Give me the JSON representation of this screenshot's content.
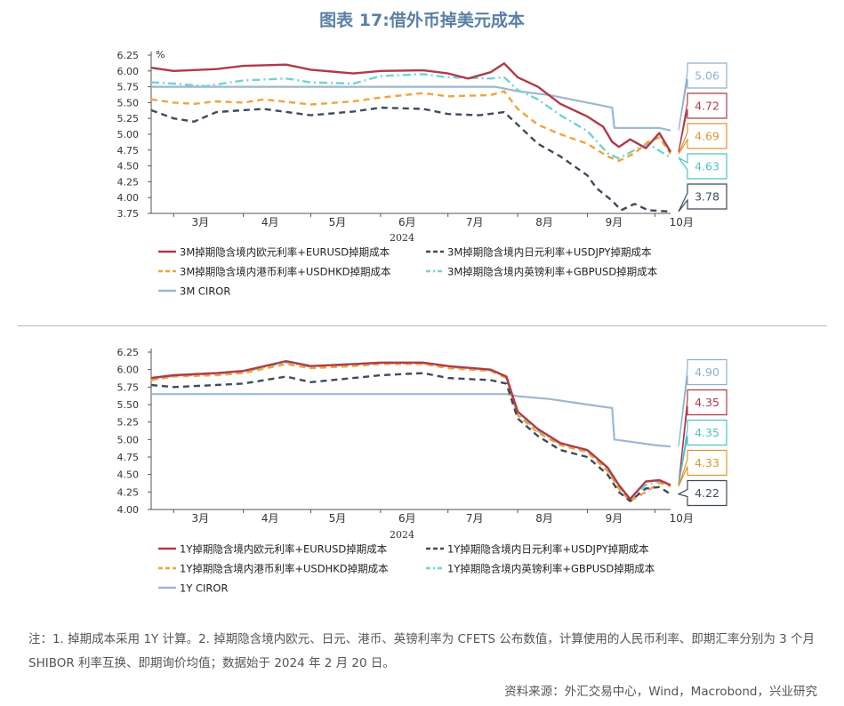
{
  "figure_title": "图表 17:借外币掉美元成本",
  "colors": {
    "eur": "#b03a48",
    "jpy": "#3e4a5c",
    "hkd": "#f0a43a",
    "gbp": "#6fd3d6",
    "ciror": "#9bb8d5"
  },
  "chart_data": [
    {
      "type": "line",
      "ylabel": "%",
      "ylim": [
        3.75,
        6.25
      ],
      "yticks": [
        "6.25",
        "6.00",
        "5.75",
        "5.50",
        "5.25",
        "5.00",
        "4.75",
        "4.50",
        "4.25",
        "4.00",
        "3.75"
      ],
      "x_range": [
        "2024-02-20",
        "2024-10-08"
      ],
      "x_year": "2024",
      "xticks": [
        {
          "date": "2024-03-01",
          "label": "3月"
        },
        {
          "date": "2024-04-01",
          "label": "4月"
        },
        {
          "date": "2024-05-01",
          "label": "5月"
        },
        {
          "date": "2024-06-01",
          "label": "6月"
        },
        {
          "date": "2024-07-01",
          "label": "7月"
        },
        {
          "date": "2024-08-01",
          "label": "8月"
        },
        {
          "date": "2024-09-01",
          "label": "9月"
        },
        {
          "date": "2024-10-01",
          "label": "10月"
        }
      ],
      "series": [
        {
          "key": "eur",
          "name": "3M掉期隐含境内欧元利率+EURUSD掉期成本",
          "end_label": "4.72",
          "points": [
            [
              "2024-02-20",
              6.05
            ],
            [
              "2024-03-01",
              6.0
            ],
            [
              "2024-03-20",
              6.03
            ],
            [
              "2024-04-01",
              6.08
            ],
            [
              "2024-04-20",
              6.1
            ],
            [
              "2024-05-01",
              6.02
            ],
            [
              "2024-05-20",
              5.96
            ],
            [
              "2024-06-01",
              6.0
            ],
            [
              "2024-06-20",
              6.01
            ],
            [
              "2024-07-01",
              5.96
            ],
            [
              "2024-07-10",
              5.88
            ],
            [
              "2024-07-20",
              5.98
            ],
            [
              "2024-07-26",
              6.12
            ],
            [
              "2024-08-01",
              5.9
            ],
            [
              "2024-08-10",
              5.75
            ],
            [
              "2024-08-20",
              5.48
            ],
            [
              "2024-09-01",
              5.28
            ],
            [
              "2024-09-08",
              5.12
            ],
            [
              "2024-09-12",
              4.88
            ],
            [
              "2024-09-15",
              4.8
            ],
            [
              "2024-09-20",
              4.92
            ],
            [
              "2024-09-27",
              4.78
            ],
            [
              "2024-10-03",
              5.02
            ],
            [
              "2024-10-08",
              4.72
            ]
          ]
        },
        {
          "key": "jpy",
          "name": "3M掉期隐含境内日元利率+USDJPY掉期成本",
          "end_label": "3.78",
          "points": [
            [
              "2024-02-20",
              5.38
            ],
            [
              "2024-03-01",
              5.25
            ],
            [
              "2024-03-10",
              5.2
            ],
            [
              "2024-03-20",
              5.35
            ],
            [
              "2024-04-01",
              5.38
            ],
            [
              "2024-04-10",
              5.4
            ],
            [
              "2024-05-01",
              5.3
            ],
            [
              "2024-05-20",
              5.36
            ],
            [
              "2024-06-01",
              5.42
            ],
            [
              "2024-06-20",
              5.4
            ],
            [
              "2024-07-01",
              5.32
            ],
            [
              "2024-07-15",
              5.3
            ],
            [
              "2024-07-26",
              5.35
            ],
            [
              "2024-08-01",
              5.15
            ],
            [
              "2024-08-10",
              4.85
            ],
            [
              "2024-08-20",
              4.65
            ],
            [
              "2024-09-01",
              4.35
            ],
            [
              "2024-09-05",
              4.15
            ],
            [
              "2024-09-12",
              3.95
            ],
            [
              "2024-09-16",
              3.8
            ],
            [
              "2024-09-22",
              3.9
            ],
            [
              "2024-09-28",
              3.8
            ],
            [
              "2024-10-08",
              3.78
            ]
          ]
        },
        {
          "key": "hkd",
          "name": "3M掉期隐含境内港币利率+USDHKD掉期成本",
          "end_label": "4.69",
          "points": [
            [
              "2024-02-20",
              5.55
            ],
            [
              "2024-03-01",
              5.5
            ],
            [
              "2024-03-10",
              5.48
            ],
            [
              "2024-03-20",
              5.52
            ],
            [
              "2024-04-01",
              5.5
            ],
            [
              "2024-04-10",
              5.55
            ],
            [
              "2024-05-01",
              5.47
            ],
            [
              "2024-05-20",
              5.52
            ],
            [
              "2024-06-01",
              5.58
            ],
            [
              "2024-06-20",
              5.65
            ],
            [
              "2024-07-01",
              5.6
            ],
            [
              "2024-07-20",
              5.62
            ],
            [
              "2024-07-26",
              5.68
            ],
            [
              "2024-08-01",
              5.4
            ],
            [
              "2024-08-10",
              5.15
            ],
            [
              "2024-08-20",
              5.0
            ],
            [
              "2024-09-01",
              4.85
            ],
            [
              "2024-09-10",
              4.65
            ],
            [
              "2024-09-15",
              4.58
            ],
            [
              "2024-09-22",
              4.7
            ],
            [
              "2024-09-28",
              4.88
            ],
            [
              "2024-10-03",
              4.95
            ],
            [
              "2024-10-08",
              4.69
            ]
          ]
        },
        {
          "key": "gbp",
          "name": "3M掉期隐含境内英镑利率+GBPUSD掉期成本",
          "end_label": "4.63",
          "points": [
            [
              "2024-02-20",
              5.82
            ],
            [
              "2024-03-01",
              5.8
            ],
            [
              "2024-03-15",
              5.76
            ],
            [
              "2024-04-01",
              5.85
            ],
            [
              "2024-04-20",
              5.88
            ],
            [
              "2024-05-01",
              5.82
            ],
            [
              "2024-05-20",
              5.8
            ],
            [
              "2024-06-01",
              5.92
            ],
            [
              "2024-06-20",
              5.95
            ],
            [
              "2024-07-01",
              5.9
            ],
            [
              "2024-07-20",
              5.88
            ],
            [
              "2024-07-26",
              5.9
            ],
            [
              "2024-08-01",
              5.7
            ],
            [
              "2024-08-10",
              5.55
            ],
            [
              "2024-08-20",
              5.3
            ],
            [
              "2024-09-01",
              5.05
            ],
            [
              "2024-09-10",
              4.7
            ],
            [
              "2024-09-15",
              4.62
            ],
            [
              "2024-09-22",
              4.75
            ],
            [
              "2024-09-28",
              4.85
            ],
            [
              "2024-10-08",
              4.63
            ]
          ]
        },
        {
          "key": "ciror",
          "name": "3M CIROR",
          "end_label": "5.06",
          "points": [
            [
              "2024-02-20",
              5.75
            ],
            [
              "2024-07-22",
              5.75
            ],
            [
              "2024-08-01",
              5.68
            ],
            [
              "2024-08-15",
              5.62
            ],
            [
              "2024-09-01",
              5.5
            ],
            [
              "2024-09-12",
              5.42
            ],
            [
              "2024-09-13",
              5.1
            ],
            [
              "2024-10-03",
              5.1
            ],
            [
              "2024-10-08",
              5.06
            ]
          ]
        }
      ]
    },
    {
      "type": "line",
      "ylabel": "",
      "ylim": [
        4.0,
        6.25
      ],
      "yticks": [
        "6.25",
        "6.00",
        "5.75",
        "5.50",
        "5.25",
        "5.00",
        "4.75",
        "4.50",
        "4.25",
        "4.00"
      ],
      "x_range": [
        "2024-02-20",
        "2024-10-08"
      ],
      "x_year": "2024",
      "xticks": [
        {
          "date": "2024-03-01",
          "label": "3月"
        },
        {
          "date": "2024-04-01",
          "label": "4月"
        },
        {
          "date": "2024-05-01",
          "label": "5月"
        },
        {
          "date": "2024-06-01",
          "label": "6月"
        },
        {
          "date": "2024-07-01",
          "label": "7月"
        },
        {
          "date": "2024-08-01",
          "label": "8月"
        },
        {
          "date": "2024-09-01",
          "label": "9月"
        },
        {
          "date": "2024-10-01",
          "label": "10月"
        }
      ],
      "series": [
        {
          "key": "eur",
          "name": "1Y掉期隐含境内欧元利率+EURUSD掉期成本",
          "end_label": "4.35",
          "points": [
            [
              "2024-02-20",
              5.88
            ],
            [
              "2024-03-01",
              5.92
            ],
            [
              "2024-03-20",
              5.95
            ],
            [
              "2024-04-01",
              5.98
            ],
            [
              "2024-04-20",
              6.12
            ],
            [
              "2024-05-01",
              6.05
            ],
            [
              "2024-05-20",
              6.08
            ],
            [
              "2024-06-01",
              6.1
            ],
            [
              "2024-06-20",
              6.1
            ],
            [
              "2024-07-01",
              6.05
            ],
            [
              "2024-07-20",
              6.0
            ],
            [
              "2024-07-27",
              5.9
            ],
            [
              "2024-08-01",
              5.4
            ],
            [
              "2024-08-10",
              5.15
            ],
            [
              "2024-08-20",
              4.95
            ],
            [
              "2024-09-01",
              4.85
            ],
            [
              "2024-09-10",
              4.6
            ],
            [
              "2024-09-15",
              4.35
            ],
            [
              "2024-09-20",
              4.15
            ],
            [
              "2024-09-27",
              4.4
            ],
            [
              "2024-10-03",
              4.42
            ],
            [
              "2024-10-08",
              4.35
            ]
          ]
        },
        {
          "key": "jpy",
          "name": "1Y掉期隐含境内日元利率+USDJPY掉期成本",
          "end_label": "4.22",
          "points": [
            [
              "2024-02-20",
              5.78
            ],
            [
              "2024-03-01",
              5.75
            ],
            [
              "2024-03-20",
              5.78
            ],
            [
              "2024-04-01",
              5.8
            ],
            [
              "2024-04-20",
              5.9
            ],
            [
              "2024-05-01",
              5.82
            ],
            [
              "2024-05-20",
              5.88
            ],
            [
              "2024-06-01",
              5.92
            ],
            [
              "2024-06-20",
              5.95
            ],
            [
              "2024-07-01",
              5.88
            ],
            [
              "2024-07-20",
              5.85
            ],
            [
              "2024-07-27",
              5.8
            ],
            [
              "2024-08-01",
              5.3
            ],
            [
              "2024-08-10",
              5.05
            ],
            [
              "2024-08-20",
              4.85
            ],
            [
              "2024-09-01",
              4.75
            ],
            [
              "2024-09-10",
              4.5
            ],
            [
              "2024-09-15",
              4.25
            ],
            [
              "2024-09-20",
              4.12
            ],
            [
              "2024-09-27",
              4.3
            ],
            [
              "2024-10-03",
              4.32
            ],
            [
              "2024-10-08",
              4.22
            ]
          ]
        },
        {
          "key": "hkd",
          "name": "1Y掉期隐含境内港币利率+USDHKD掉期成本",
          "end_label": "4.33",
          "points": [
            [
              "2024-02-20",
              5.85
            ],
            [
              "2024-03-01",
              5.9
            ],
            [
              "2024-03-20",
              5.92
            ],
            [
              "2024-04-01",
              5.95
            ],
            [
              "2024-04-20",
              6.08
            ],
            [
              "2024-05-01",
              6.02
            ],
            [
              "2024-05-20",
              6.05
            ],
            [
              "2024-06-01",
              6.08
            ],
            [
              "2024-06-20",
              6.08
            ],
            [
              "2024-07-01",
              6.02
            ],
            [
              "2024-07-20",
              5.98
            ],
            [
              "2024-07-27",
              5.88
            ],
            [
              "2024-08-01",
              5.35
            ],
            [
              "2024-08-10",
              5.1
            ],
            [
              "2024-08-20",
              4.92
            ],
            [
              "2024-09-01",
              4.82
            ],
            [
              "2024-09-10",
              4.55
            ],
            [
              "2024-09-15",
              4.3
            ],
            [
              "2024-09-20",
              4.12
            ],
            [
              "2024-09-27",
              4.25
            ],
            [
              "2024-10-03",
              4.38
            ],
            [
              "2024-10-08",
              4.33
            ]
          ]
        },
        {
          "key": "gbp",
          "name": "1Y掉期隐含境内英镑利率+GBPUSD掉期成本",
          "end_label": "4.35",
          "points": [
            [
              "2024-02-20",
              5.86
            ],
            [
              "2024-03-01",
              5.91
            ],
            [
              "2024-03-20",
              5.94
            ],
            [
              "2024-04-01",
              5.97
            ],
            [
              "2024-04-20",
              6.1
            ],
            [
              "2024-05-01",
              6.04
            ],
            [
              "2024-05-20",
              6.07
            ],
            [
              "2024-06-01",
              6.09
            ],
            [
              "2024-06-20",
              6.09
            ],
            [
              "2024-07-01",
              6.04
            ],
            [
              "2024-07-20",
              5.99
            ],
            [
              "2024-07-27",
              5.89
            ],
            [
              "2024-08-01",
              5.38
            ],
            [
              "2024-08-10",
              5.12
            ],
            [
              "2024-08-20",
              4.94
            ],
            [
              "2024-09-01",
              4.84
            ],
            [
              "2024-09-10",
              4.58
            ],
            [
              "2024-09-15",
              4.32
            ],
            [
              "2024-09-20",
              4.14
            ],
            [
              "2024-09-27",
              4.35
            ],
            [
              "2024-10-03",
              4.4
            ],
            [
              "2024-10-08",
              4.35
            ]
          ]
        },
        {
          "key": "ciror",
          "name": "1Y CIROR",
          "end_label": "4.90",
          "points": [
            [
              "2024-02-20",
              5.65
            ],
            [
              "2024-07-27",
              5.65
            ],
            [
              "2024-08-01",
              5.62
            ],
            [
              "2024-08-15",
              5.58
            ],
            [
              "2024-09-01",
              5.5
            ],
            [
              "2024-09-12",
              5.45
            ],
            [
              "2024-09-13",
              5.0
            ],
            [
              "2024-09-20",
              4.97
            ],
            [
              "2024-10-01",
              4.92
            ],
            [
              "2024-10-08",
              4.9
            ]
          ]
        }
      ]
    }
  ],
  "note": "注：1. 掉期成本采用 1Y 计算。2. 掉期隐含境内欧元、日元、港币、英镑利率为 CFETS 公布数值，计算使用的人民币利率、即期汇率分别为 3 个月 SHIBOR 利率互换、即期询价均值；数据始于 2024 年 2 月 20 日。",
  "source": "资料来源：外汇交易中心，Wind，Macrobond，兴业研究"
}
